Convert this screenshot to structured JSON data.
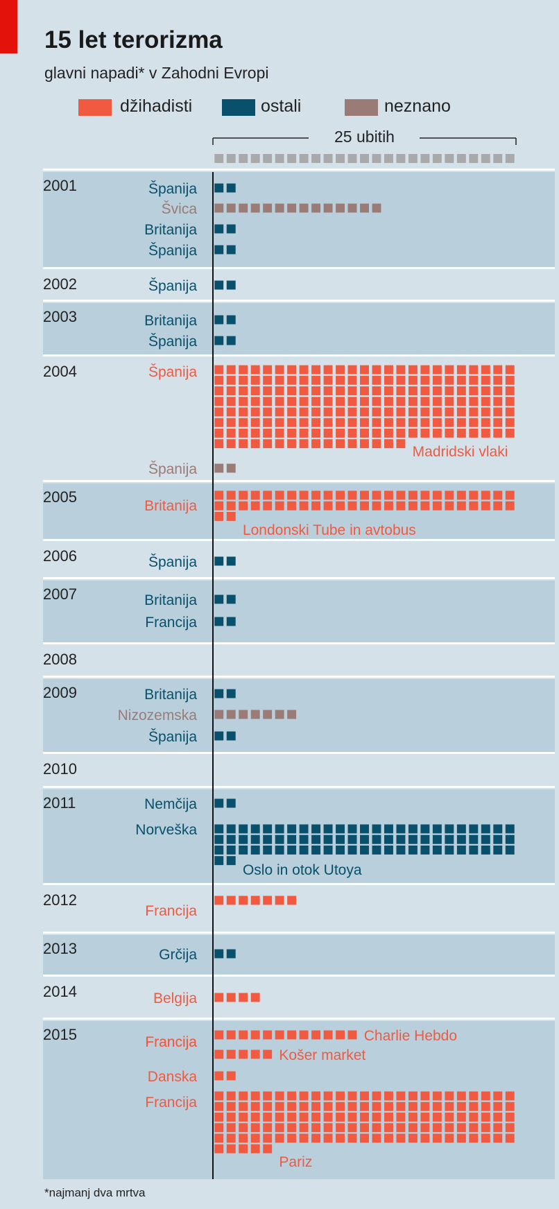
{
  "title": "15 let terorizma",
  "subtitle": "glavni napadi* v Zahodni  Evropi",
  "footnote": "*najmanj dva mrtva",
  "legend": [
    {
      "key": "dzihadisti",
      "label": "džihadisti",
      "color": "#f05a41"
    },
    {
      "key": "ostali",
      "label": "ostali",
      "color": "#08506b"
    },
    {
      "key": "neznano",
      "label": "neznano",
      "color": "#9a7b76"
    }
  ],
  "colors": {
    "background": "#d4e1e9",
    "band": "#b9cfdb",
    "divider": "#ffffff",
    "axis": "#111111",
    "scale": "#a7a9ab",
    "accent": "#e3120b"
  },
  "chart_data": {
    "type": "unit-square",
    "unit_label": "25 ubitih",
    "scale_units": 25,
    "years": [
      {
        "year": "2001",
        "attacks": [
          {
            "country": "Španija",
            "group": "ostali",
            "deaths": 2
          },
          {
            "country": "Švica",
            "group": "neznano",
            "deaths": 14
          },
          {
            "country": "Britanija",
            "group": "ostali",
            "deaths": 2
          },
          {
            "country": "Španija",
            "group": "ostali",
            "deaths": 2
          }
        ]
      },
      {
        "year": "2002",
        "attacks": [
          {
            "country": "Španija",
            "group": "ostali",
            "deaths": 2
          }
        ]
      },
      {
        "year": "2003",
        "attacks": [
          {
            "country": "Britanija",
            "group": "ostali",
            "deaths": 2
          },
          {
            "country": "Španija",
            "group": "ostali",
            "deaths": 2
          }
        ]
      },
      {
        "year": "2004",
        "attacks": [
          {
            "country": "Španija",
            "group": "dzihadisti",
            "deaths": 191,
            "note": "Madridski vlaki"
          },
          {
            "country": "Španija",
            "group": "neznano",
            "deaths": 2
          }
        ]
      },
      {
        "year": "2005",
        "attacks": [
          {
            "country": "Britanija",
            "group": "dzihadisti",
            "deaths": 52,
            "note": "Londonski Tube in avtobus"
          }
        ]
      },
      {
        "year": "2006",
        "attacks": [
          {
            "country": "Španija",
            "group": "ostali",
            "deaths": 2
          }
        ]
      },
      {
        "year": "2007",
        "attacks": [
          {
            "country": "Britanija",
            "group": "ostali",
            "deaths": 2
          },
          {
            "country": "Francija",
            "group": "ostali",
            "deaths": 2
          }
        ]
      },
      {
        "year": "2008",
        "attacks": []
      },
      {
        "year": "2009",
        "attacks": [
          {
            "country": "Britanija",
            "group": "ostali",
            "deaths": 2
          },
          {
            "country": "Nizozemska",
            "group": "neznano",
            "deaths": 7
          },
          {
            "country": "Španija",
            "group": "ostali",
            "deaths": 2
          }
        ]
      },
      {
        "year": "2010",
        "attacks": []
      },
      {
        "year": "2011",
        "attacks": [
          {
            "country": "Nemčija",
            "group": "ostali",
            "deaths": 2
          },
          {
            "country": "Norveška",
            "group": "ostali",
            "deaths": 77,
            "note": "Oslo in otok Utoya"
          }
        ]
      },
      {
        "year": "2012",
        "attacks": [
          {
            "country": "Francija",
            "group": "dzihadisti",
            "deaths": 7
          }
        ]
      },
      {
        "year": "2013",
        "attacks": [
          {
            "country": "Grčija",
            "group": "ostali",
            "deaths": 2
          }
        ]
      },
      {
        "year": "2014",
        "attacks": [
          {
            "country": "Belgija",
            "group": "dzihadisti",
            "deaths": 4
          }
        ]
      },
      {
        "year": "2015",
        "attacks": [
          {
            "country": "Francija",
            "group": "dzihadisti",
            "deaths": 12,
            "note": "Charlie Hebdo"
          },
          {
            "country": "Francija",
            "group": "dzihadisti",
            "deaths": 5,
            "note": "Košer market"
          },
          {
            "country": "Danska",
            "group": "dzihadisti",
            "deaths": 2
          },
          {
            "country": "Francija",
            "group": "dzihadisti",
            "deaths": 130,
            "note": "Pariz"
          }
        ]
      }
    ]
  }
}
